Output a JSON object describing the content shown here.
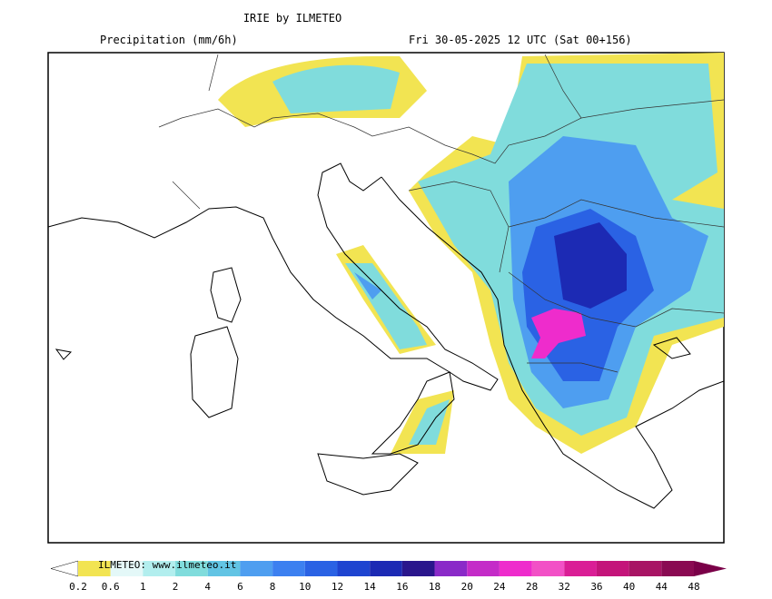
{
  "header": {
    "title": "IRIE by ILMETEO",
    "field": "Precipitation (mm/6h)",
    "valid_time": "Fri 30-05-2025 12 UTC (Sat 00+156)"
  },
  "legend": {
    "watermark": "ILMETEO: www.ilmeteo.it",
    "levels": [
      0.2,
      0.6,
      1,
      2,
      4,
      6,
      8,
      10,
      12,
      14,
      16,
      18,
      20,
      24,
      28,
      32,
      36,
      40,
      44,
      48
    ],
    "below_color": "#ffffff",
    "colors": [
      "#f2e452",
      "#e4f8f8",
      "#b2eeee",
      "#80dcdc",
      "#62c4e4",
      "#4e9ef0",
      "#3c80f0",
      "#2a62e4",
      "#1e44d0",
      "#1c2ab4",
      "#2a168c",
      "#8a2ac8",
      "#c42cc8",
      "#ee2ccc",
      "#f250c6",
      "#da1e96",
      "#c4147a",
      "#a81464",
      "#8a0a52"
    ],
    "above_color": "#7a0048"
  }
}
